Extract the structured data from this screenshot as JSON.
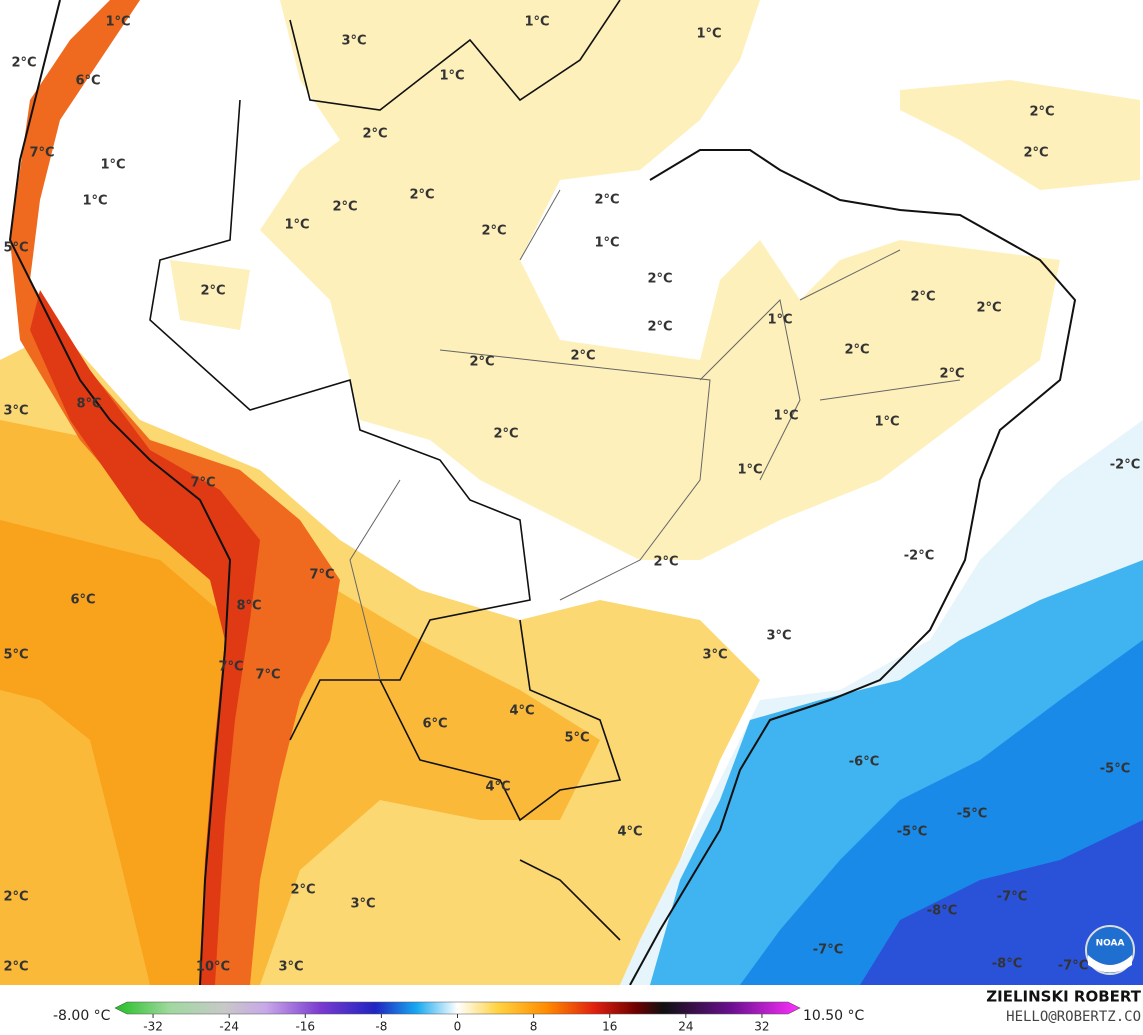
{
  "map": {
    "labels": [
      "1°C",
      "3°C",
      "1°C",
      "1°C",
      "2°C",
      "6°C",
      "1°C",
      "2°C",
      "2°C",
      "2°C",
      "7°C",
      "1°C",
      "1°C",
      "2°C",
      "2°C",
      "2°C",
      "1°C",
      "2°C",
      "1°C",
      "5°C",
      "2°C",
      "2°C",
      "2°C",
      "2°C",
      "1°C",
      "2°C",
      "2°C",
      "2°C",
      "2°C",
      "2°C",
      "8°C",
      "3°C",
      "1°C",
      "1°C",
      "2°C",
      "-2°C",
      "1°C",
      "7°C",
      "-2°C",
      "2°C",
      "7°C",
      "6°C",
      "8°C",
      "3°C",
      "5°C",
      "3°C",
      "7°C",
      "7°C",
      "6°C",
      "4°C",
      "5°C",
      "-6°C",
      "-5°C",
      "4°C",
      "-5°C",
      "-5°C",
      "4°C",
      "2°C",
      "2°C",
      "-7°C",
      "3°C",
      "-8°C",
      "-7°C",
      "2°C",
      "10°C",
      "3°C",
      "-8°C",
      "-7°C"
    ],
    "logo": "NOAA"
  },
  "colorbar": {
    "min_label": "-8.00 °C",
    "max_label": "10.50 °C",
    "range": [
      -36,
      36
    ],
    "ticks": [
      -32,
      -24,
      -16,
      -8,
      0,
      8,
      16,
      24,
      32
    ]
  },
  "credit": {
    "name": "ZIELINSKI ROBERT",
    "contact": "HELLO@ROBERTZ.CO"
  }
}
